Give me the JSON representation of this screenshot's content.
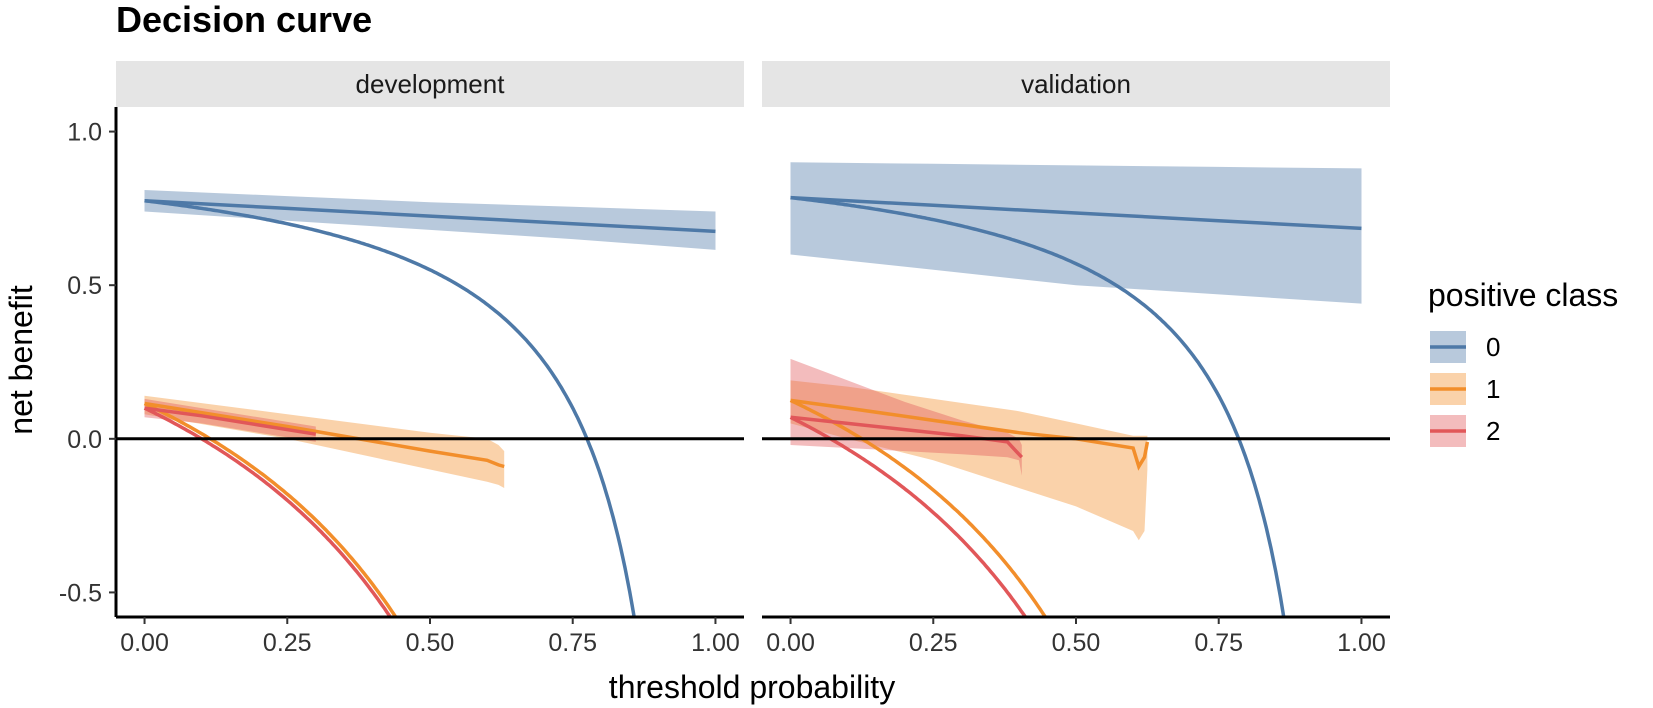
{
  "chart_data": {
    "type": "line",
    "title": "Decision curve",
    "xlabel": "threshold probability",
    "ylabel": "net benefit",
    "xlim": [
      -0.05,
      1.05
    ],
    "ylim": [
      -0.58,
      1.08
    ],
    "xticks": [
      0,
      0.25,
      0.5,
      0.75,
      1.0
    ],
    "xtick_labels": [
      "0.00",
      "0.25",
      "0.50",
      "0.75",
      "1.00"
    ],
    "yticks": [
      -0.5,
      0,
      0.5,
      1.0
    ],
    "ytick_labels": [
      "-0.5",
      "0.0",
      "0.5",
      "1.0"
    ],
    "grid": false,
    "legend": {
      "title": "positive class",
      "position": "right",
      "entries": [
        {
          "label": "0",
          "color": "#4e79a7"
        },
        {
          "label": "1",
          "color": "#f28e2b"
        },
        {
          "label": "2",
          "color": "#e15759"
        }
      ]
    },
    "panels": [
      {
        "name": "development",
        "model": [
          {
            "class": "0",
            "x": [
              0,
              0.25,
              0.5,
              0.75,
              1.0
            ],
            "y": [
              0.775,
              0.75,
              0.725,
              0.7,
              0.675
            ],
            "ci_lower": [
              0.74,
              0.71,
              0.68,
              0.65,
              0.615
            ],
            "ci_upper": [
              0.81,
              0.79,
              0.77,
              0.755,
              0.74
            ]
          },
          {
            "class": "1",
            "x": [
              0,
              0.25,
              0.5,
              0.6,
              0.62,
              0.63
            ],
            "y": [
              0.115,
              0.04,
              -0.04,
              -0.07,
              -0.085,
              -0.09
            ],
            "ci_lower": [
              0.08,
              0.0,
              -0.1,
              -0.14,
              -0.15,
              -0.16
            ],
            "ci_upper": [
              0.14,
              0.08,
              0.02,
              0.0,
              -0.02,
              -0.04
            ]
          },
          {
            "class": "2",
            "x": [
              0,
              0.1,
              0.2,
              0.3
            ],
            "y": [
              0.1,
              0.075,
              0.045,
              0.015
            ],
            "ci_lower": [
              0.07,
              0.05,
              0.02,
              -0.01
            ],
            "ci_upper": [
              0.13,
              0.1,
              0.07,
              0.04
            ]
          }
        ],
        "treat_all_prevalence": {
          "0": 0.775,
          "1": 0.115,
          "2": 0.1
        }
      },
      {
        "name": "validation",
        "model": [
          {
            "class": "0",
            "x": [
              0,
              0.25,
              0.5,
              0.75,
              1.0
            ],
            "y": [
              0.785,
              0.76,
              0.735,
              0.71,
              0.685
            ],
            "ci_lower": [
              0.6,
              0.55,
              0.5,
              0.47,
              0.44
            ],
            "ci_upper": [
              0.9,
              0.895,
              0.89,
              0.885,
              0.88
            ]
          },
          {
            "class": "1",
            "x": [
              0,
              0.1,
              0.25,
              0.4,
              0.5,
              0.6,
              0.61,
              0.62,
              0.625
            ],
            "y": [
              0.125,
              0.1,
              0.06,
              0.02,
              0.0,
              -0.03,
              -0.09,
              -0.06,
              -0.01
            ],
            "ci_lower": [
              0.05,
              0.0,
              -0.07,
              -0.16,
              -0.22,
              -0.3,
              -0.33,
              -0.3,
              -0.1
            ],
            "ci_upper": [
              0.19,
              0.17,
              0.13,
              0.09,
              0.05,
              0.01,
              0.01,
              0.01,
              0.01
            ]
          },
          {
            "class": "2",
            "x": [
              0,
              0.1,
              0.2,
              0.3,
              0.38,
              0.4,
              0.405
            ],
            "y": [
              0.07,
              0.05,
              0.03,
              0.01,
              -0.01,
              -0.05,
              -0.06
            ],
            "ci_lower": [
              -0.02,
              -0.03,
              -0.04,
              -0.05,
              -0.06,
              -0.07,
              -0.12
            ],
            "ci_upper": [
              0.26,
              0.19,
              0.12,
              0.06,
              0.02,
              0.0,
              -0.02
            ]
          }
        ],
        "treat_all_prevalence": {
          "0": 0.785,
          "1": 0.125,
          "2": 0.07
        }
      }
    ]
  }
}
